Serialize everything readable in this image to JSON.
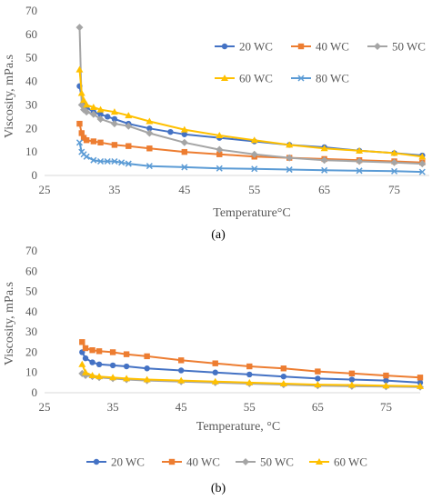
{
  "chart_data": [
    {
      "type": "line",
      "panel_label": "(a)",
      "xlabel": "Temperature°C",
      "ylabel": "Viscosity, mPa.s",
      "xlim": [
        25,
        80
      ],
      "ylim": [
        0,
        70
      ],
      "xticks": [
        "25",
        "35",
        "45",
        "55",
        "65",
        "75"
      ],
      "yticks": [
        "0",
        "10",
        "20",
        "30",
        "40",
        "50",
        "60",
        "70"
      ],
      "grid": false,
      "legend_position": "right",
      "series": [
        {
          "name": "20 WC",
          "color": "#4472C4",
          "marker": "circle",
          "x": [
            30,
            30.5,
            31,
            32,
            33,
            34,
            35,
            37,
            40,
            43,
            45,
            50,
            55,
            60,
            65,
            70,
            75,
            79
          ],
          "y": [
            38,
            30,
            29,
            27,
            26,
            25,
            24,
            22,
            20,
            18.5,
            17.5,
            16,
            14.5,
            13,
            12,
            10.5,
            9.5,
            8.5
          ]
        },
        {
          "name": "40 WC",
          "color": "#ED7D31",
          "marker": "square",
          "x": [
            30,
            30.3,
            30.6,
            31,
            32,
            33,
            35,
            37,
            40,
            45,
            50,
            55,
            60,
            65,
            70,
            75,
            79
          ],
          "y": [
            22,
            18,
            16,
            15,
            14.5,
            14,
            13,
            12.5,
            11.5,
            10,
            9,
            8,
            7.5,
            7,
            6.5,
            6,
            5.5
          ]
        },
        {
          "name": "50 WC",
          "color": "#A5A5A5",
          "marker": "diamond",
          "x": [
            30,
            30.3,
            30.6,
            31,
            32,
            33,
            35,
            37,
            40,
            45,
            50,
            55,
            60,
            65,
            70,
            75,
            79
          ],
          "y": [
            63,
            30,
            28,
            27,
            26,
            24,
            22,
            21,
            18,
            14,
            11,
            9,
            7.5,
            6.5,
            6,
            5.5,
            5
          ]
        },
        {
          "name": "60 WC",
          "color": "#FFC000",
          "marker": "triangle",
          "x": [
            30,
            30.3,
            30.6,
            31,
            32,
            33,
            35,
            37,
            40,
            45,
            50,
            55,
            60,
            65,
            70,
            75,
            79
          ],
          "y": [
            45,
            35,
            32,
            30,
            29,
            28,
            27,
            25.5,
            23,
            19.5,
            17,
            15,
            13,
            11.5,
            10.5,
            9.5,
            8
          ]
        },
        {
          "name": "80 WC",
          "color": "#5B9BD5",
          "marker": "x",
          "x": [
            30,
            30.3,
            30.6,
            31,
            32,
            33,
            34,
            35,
            36,
            37,
            40,
            45,
            50,
            55,
            60,
            65,
            70,
            75,
            79
          ],
          "y": [
            14,
            10,
            9,
            8,
            6.5,
            6,
            6,
            6,
            5.5,
            5,
            4,
            3.5,
            3,
            2.8,
            2.5,
            2.2,
            2,
            1.8,
            1.5
          ]
        }
      ]
    },
    {
      "type": "line",
      "panel_label": "(b)",
      "xlabel": "Temperature, °C",
      "ylabel": "Viscosity, mPa.s",
      "xlim": [
        25,
        80
      ],
      "ylim": [
        0,
        70
      ],
      "xticks": [
        "25",
        "35",
        "45",
        "55",
        "65",
        "75"
      ],
      "yticks": [
        "0",
        "10",
        "20",
        "30",
        "40",
        "50",
        "60",
        "70"
      ],
      "grid": false,
      "legend_position": "bottom",
      "series": [
        {
          "name": "20 WC",
          "color": "#4472C4",
          "marker": "circle",
          "x": [
            30.5,
            31,
            32,
            33,
            35,
            37,
            40,
            45,
            50,
            55,
            60,
            65,
            70,
            75,
            80
          ],
          "y": [
            20,
            17,
            15,
            14,
            13.5,
            13,
            12,
            11,
            10,
            9,
            8,
            7,
            6.5,
            6,
            5
          ]
        },
        {
          "name": "40 WC",
          "color": "#ED7D31",
          "marker": "square",
          "x": [
            30.5,
            31,
            32,
            33,
            35,
            37,
            40,
            45,
            50,
            55,
            60,
            65,
            70,
            75,
            80
          ],
          "y": [
            25,
            22,
            21,
            20.5,
            20,
            19,
            18,
            16,
            14.5,
            13,
            12,
            10.5,
            9.5,
            8.5,
            7.5
          ]
        },
        {
          "name": "50 WC",
          "color": "#A5A5A5",
          "marker": "diamond",
          "x": [
            30.5,
            31,
            32,
            33,
            35,
            37,
            40,
            45,
            50,
            55,
            60,
            65,
            70,
            75,
            80
          ],
          "y": [
            9.5,
            8.5,
            8,
            7.5,
            7,
            6.5,
            6,
            5.5,
            5,
            4.5,
            4,
            3.5,
            3.2,
            3,
            2.8
          ]
        },
        {
          "name": "60 WC",
          "color": "#FFC000",
          "marker": "triangle",
          "x": [
            30.5,
            31,
            32,
            33,
            35,
            37,
            40,
            45,
            50,
            55,
            60,
            65,
            70,
            75,
            80
          ],
          "y": [
            14,
            10,
            8.5,
            8,
            7.5,
            7,
            6.5,
            6,
            5.5,
            5,
            4.5,
            4,
            3.8,
            3.5,
            3.2
          ]
        }
      ]
    }
  ]
}
